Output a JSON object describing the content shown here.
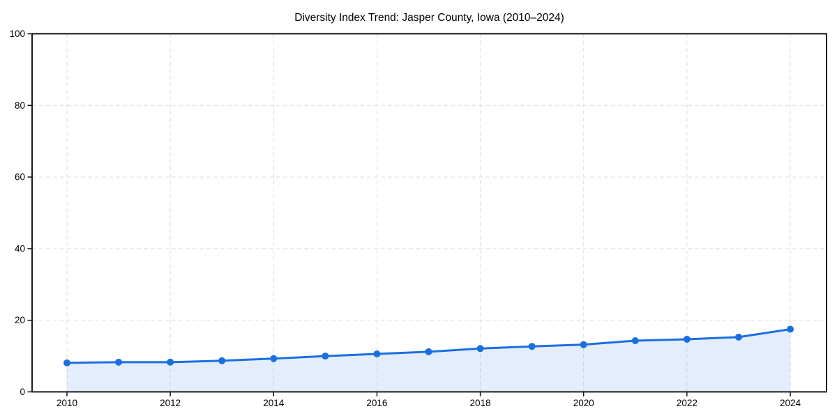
{
  "page": {
    "background": "#ffffff"
  },
  "chart_data": {
    "type": "area",
    "title": "Diversity Index Trend: Jasper County, Iowa (2010–2024)",
    "xlabel": "",
    "ylabel": "",
    "x": [
      2010,
      2011,
      2012,
      2013,
      2014,
      2015,
      2016,
      2017,
      2018,
      2019,
      2020,
      2021,
      2022,
      2023,
      2024
    ],
    "series": [
      {
        "name": "Diversity Index",
        "values": [
          8.1,
          8.3,
          8.3,
          8.7,
          9.3,
          10.0,
          10.6,
          11.2,
          12.1,
          12.7,
          13.2,
          14.3,
          14.7,
          15.3,
          17.5
        ]
      }
    ],
    "ylim": [
      0,
      100
    ],
    "yticks": [
      0,
      20,
      40,
      60,
      80,
      100
    ],
    "xticks": [
      2010,
      2012,
      2014,
      2016,
      2018,
      2020,
      2022,
      2024
    ],
    "grid": true,
    "grid_style": "dashed",
    "legend": false,
    "marker": "circle",
    "colors": {
      "line": "#1a6fe0",
      "marker": "#1a6fe0",
      "fill": "rgba(26, 111, 224, 0.12)",
      "grid": "#dedede",
      "axis": "#000000",
      "text": "#000000",
      "background": "#ffffff"
    }
  }
}
